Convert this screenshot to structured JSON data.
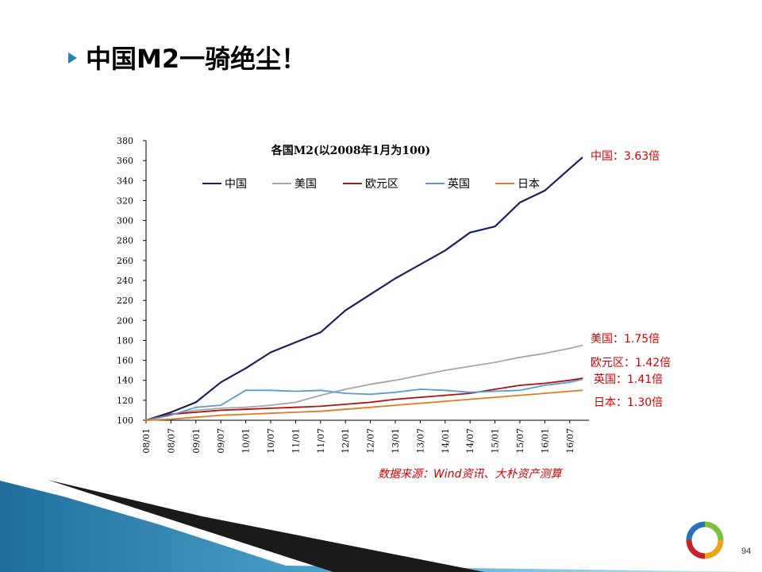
{
  "slide": {
    "title": "中国M2一骑绝尘！",
    "page_number": "94",
    "source": "数据来源：Wind资讯、大朴资产测算"
  },
  "callouts": [
    {
      "text": "中国：3.63倍",
      "series": "中国"
    },
    {
      "text": "美国：1.75倍",
      "series": "美国"
    },
    {
      "text": "欧元区：1.42倍",
      "series": "欧元区"
    },
    {
      "text": "英国：1.41倍",
      "series": "英国"
    },
    {
      "text": "日本：1.30倍",
      "series": "日本"
    }
  ],
  "colors": {
    "china": "#1b1f5e",
    "usa": "#a6a6a6",
    "euro": "#b01010",
    "uk": "#5b9bd5",
    "japan": "#e07b20",
    "accent_red": "#d40000",
    "deco_blue": "#2a7fb8"
  },
  "chart_data": {
    "type": "line",
    "title": "各国M2(以2008年1月为100)",
    "xlabel": "",
    "ylabel": "",
    "ylim": [
      100,
      380
    ],
    "yticks": [
      100,
      120,
      140,
      160,
      180,
      200,
      220,
      240,
      260,
      280,
      300,
      320,
      340,
      360,
      380
    ],
    "x_tick_labels": [
      "08/01",
      "08/07",
      "09/01",
      "09/07",
      "10/01",
      "10/07",
      "11/01",
      "11/07",
      "12/01",
      "12/07",
      "13/01",
      "13/07",
      "14/01",
      "14/07",
      "15/01",
      "15/07",
      "16/01",
      "16/07"
    ],
    "x": [
      "08/01",
      "08/07",
      "09/01",
      "09/07",
      "10/01",
      "10/07",
      "11/01",
      "11/07",
      "12/01",
      "12/07",
      "13/01",
      "13/07",
      "14/01",
      "14/07",
      "15/01",
      "15/07",
      "16/01",
      "16/07",
      "16/10"
    ],
    "legend": "top",
    "grid": false,
    "series": [
      {
        "name": "中国",
        "color": "#1b1f5e",
        "values": [
          100,
          108,
          118,
          138,
          152,
          168,
          178,
          188,
          210,
          226,
          242,
          256,
          270,
          288,
          294,
          318,
          330,
          352,
          363
        ]
      },
      {
        "name": "美国",
        "color": "#a6a6a6",
        "values": [
          100,
          106,
          110,
          112,
          113,
          115,
          118,
          125,
          131,
          136,
          140,
          145,
          150,
          154,
          158,
          163,
          167,
          172,
          175
        ]
      },
      {
        "name": "欧元区",
        "color": "#b01010",
        "values": [
          100,
          106,
          108,
          110,
          111,
          112,
          113,
          114,
          116,
          118,
          121,
          123,
          125,
          127,
          131,
          135,
          137,
          140,
          142
        ]
      },
      {
        "name": "英国",
        "color": "#5b9bd5",
        "values": [
          100,
          105,
          113,
          115,
          130,
          130,
          129,
          130,
          127,
          126,
          128,
          131,
          130,
          128,
          129,
          130,
          135,
          138,
          141
        ]
      },
      {
        "name": "日本",
        "color": "#e07b20",
        "values": [
          100,
          101,
          103,
          105,
          106,
          107,
          108,
          109,
          111,
          113,
          115,
          117,
          119,
          121,
          123,
          125,
          127,
          129,
          130
        ]
      }
    ]
  }
}
